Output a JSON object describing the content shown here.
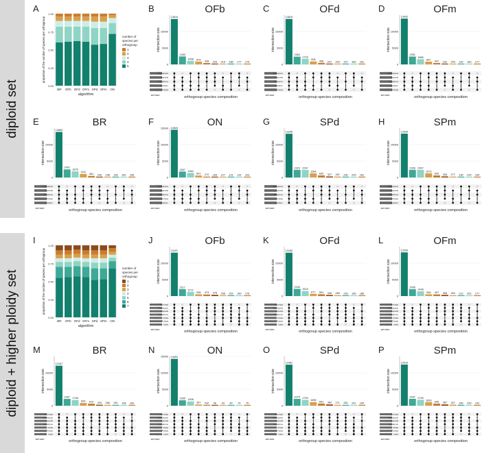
{
  "rows": {
    "diploid": "diploid set",
    "higher": "diploid + higher ploidy set"
  },
  "colors": {
    "dark": "#12806d",
    "mid": "#3fa896",
    "light": "#8fd4c4",
    "pale": "#cdeee8",
    "orange": "#c97d2c",
    "brown": "#8b4a1c",
    "gold": "#d9a04c"
  },
  "chart_data": [
    {
      "panel": "A",
      "type": "bar",
      "stacked": true,
      "title": "",
      "xlabel": "algorithm",
      "ylabel": "proportion of the number of species per orthogroup",
      "legend_title": "number of species per orthogroup",
      "categories": [
        "BR",
        "OFb",
        "OFd",
        "OFm",
        "SPd",
        "SPm",
        "ON"
      ],
      "ylim": [
        0,
        1
      ],
      "yticks": [
        "0.00",
        "0.25",
        "0.50",
        "0.75",
        "1.00"
      ],
      "series": [
        {
          "name": "5",
          "values": [
            0.6,
            0.61,
            0.62,
            0.61,
            0.57,
            0.58,
            0.72
          ]
        },
        {
          "name": "4",
          "values": [
            0.22,
            0.21,
            0.2,
            0.21,
            0.23,
            0.22,
            0.15
          ]
        },
        {
          "name": "3",
          "values": [
            0.08,
            0.08,
            0.08,
            0.08,
            0.09,
            0.09,
            0.07
          ]
        },
        {
          "name": "2",
          "values": [
            0.06,
            0.06,
            0.06,
            0.06,
            0.07,
            0.07,
            0.04
          ]
        },
        {
          "name": "1",
          "values": [
            0.04,
            0.04,
            0.04,
            0.04,
            0.04,
            0.04,
            0.02
          ]
        }
      ]
    },
    {
      "panel": "B",
      "type": "bar",
      "title": "OFb",
      "ylabel": "intersection size",
      "xlabel": "orthogroup species composition",
      "set_label": "set size",
      "ylim": [
        0,
        15000
      ],
      "yticks": [
        "0",
        "5000",
        "10000"
      ],
      "values": [
        13814,
        2430,
        1058,
        874,
        428,
        225,
        215,
        185,
        177,
        175
      ],
      "sets": [
        "Arabidopsis",
        "Capsella",
        "Cardamine",
        "Lepidium",
        "Rorippa"
      ]
    },
    {
      "panel": "C",
      "type": "bar",
      "title": "OFd",
      "ylabel": "intersection size",
      "xlabel": "orthogroup species composition",
      "set_label": "set size",
      "ylim": [
        0,
        15000
      ],
      "yticks": [
        "0",
        "5000",
        "10000"
      ],
      "values": [
        13819,
        2363,
        1716,
        908,
        458,
        247,
        202,
        197,
        182,
        181
      ],
      "sets": [
        "Arabidopsis",
        "Capsella",
        "Cardamine",
        "Lepidium",
        "Rorippa"
      ]
    },
    {
      "panel": "D",
      "type": "bar",
      "title": "OFm",
      "ylabel": "intersection size",
      "xlabel": "orthogroup species composition",
      "set_label": "set size",
      "ylim": [
        0,
        15000
      ],
      "yticks": [
        "0",
        "5000",
        "10000"
      ],
      "values": [
        13932,
        2391,
        1585,
        847,
        447,
        232,
        209,
        192,
        183,
        177
      ],
      "sets": [
        "Arabidopsis",
        "Capsella",
        "Cardamine",
        "Lepidium",
        "Rorippa"
      ]
    },
    {
      "panel": "E",
      "type": "bar",
      "title": "BR",
      "ylabel": "intersection size",
      "xlabel": "orthogroup species composition",
      "set_label": "set size",
      "ylim": [
        0,
        15000
      ],
      "yticks": [
        "0",
        "5000",
        "10000"
      ],
      "values": [
        13863,
        2457,
        1875,
        1111,
        481,
        243,
        238,
        199,
        160,
        156
      ],
      "sets": [
        "Arabidopsis",
        "Capsella",
        "Cardamine",
        "Rorippa",
        "Lepidium"
      ]
    },
    {
      "panel": "F",
      "type": "bar",
      "title": "ON",
      "ylabel": "intersection size",
      "xlabel": "orthogroup species composition",
      "set_label": "set size",
      "ylim": [
        0,
        15000
      ],
      "yticks": [
        "0",
        "5000",
        "10000",
        "15000"
      ],
      "values": [
        14524,
        1807,
        1382,
        601,
        272,
        169,
        127,
        121,
        115,
        103
      ],
      "sets": [
        "Arabidopsis",
        "Capsella",
        "Cardamine",
        "Rorippa",
        "Lepidium"
      ]
    },
    {
      "panel": "G",
      "type": "bar",
      "title": "SPd",
      "ylabel": "intersection size",
      "xlabel": "orthogroup species composition",
      "set_label": "set size",
      "ylim": [
        0,
        15000
      ],
      "yticks": [
        "0",
        "5000",
        "10000"
      ],
      "values": [
        13296,
        2315,
        2297,
        1284,
        632,
        327,
        287,
        230,
        225,
        162
      ],
      "sets": [
        "Arabidopsis",
        "Capsella",
        "Cardamine",
        "Rorippa",
        "Lepidium"
      ]
    },
    {
      "panel": "H",
      "type": "bar",
      "title": "SPm",
      "ylabel": "intersection size",
      "xlabel": "orthogroup species composition",
      "set_label": "set size",
      "ylim": [
        0,
        15000
      ],
      "yticks": [
        "0",
        "5000",
        "10000"
      ],
      "values": [
        13334,
        2326,
        2307,
        1273,
        625,
        335,
        277,
        230,
        229,
        159
      ],
      "sets": [
        "Arabidopsis",
        "Capsella",
        "Cardamine",
        "Rorippa",
        "Lepidium"
      ]
    },
    {
      "panel": "I",
      "type": "bar",
      "stacked": true,
      "title": "",
      "xlabel": "algorithm",
      "ylabel": "proportion of the number of species per orthogroup",
      "legend_title": "number of species per orthogroup",
      "categories": [
        "BR",
        "OFb",
        "OFd",
        "OFm",
        "SPd",
        "SPm",
        "ON"
      ],
      "ylim": [
        0,
        1
      ],
      "yticks": [
        "0.00",
        "0.25",
        "0.50",
        "0.75",
        "1.00"
      ],
      "series": [
        {
          "name": "7",
          "values": [
            0.55,
            0.56,
            0.57,
            0.56,
            0.52,
            0.53,
            0.68
          ]
        },
        {
          "name": "6",
          "values": [
            0.15,
            0.14,
            0.14,
            0.14,
            0.16,
            0.15,
            0.1
          ]
        },
        {
          "name": "5",
          "values": [
            0.07,
            0.07,
            0.07,
            0.07,
            0.08,
            0.08,
            0.05
          ]
        },
        {
          "name": "4",
          "values": [
            0.05,
            0.05,
            0.05,
            0.05,
            0.06,
            0.06,
            0.04
          ]
        },
        {
          "name": "3",
          "values": [
            0.05,
            0.05,
            0.05,
            0.05,
            0.05,
            0.05,
            0.04
          ]
        },
        {
          "name": "2",
          "values": [
            0.06,
            0.06,
            0.06,
            0.06,
            0.06,
            0.06,
            0.05
          ]
        },
        {
          "name": "1",
          "values": [
            0.07,
            0.07,
            0.06,
            0.07,
            0.07,
            0.07,
            0.04
          ]
        }
      ]
    },
    {
      "panel": "J",
      "type": "bar",
      "title": "OFb",
      "ylabel": "intersection size",
      "xlabel": "orthogroup species composition",
      "set_label": "set size",
      "ylim": [
        0,
        15000
      ],
      "yticks": [
        "0",
        "5000",
        "10000"
      ],
      "values": [
        13197,
        2117,
        1272,
        536,
        473,
        378,
        258,
        202,
        190,
        176
      ],
      "sets": [
        "Conringia",
        "Arabidopsis",
        "Capsella",
        "Cardamine",
        "Draba",
        "Rorippa",
        "Isatis"
      ]
    },
    {
      "panel": "K",
      "type": "bar",
      "title": "OFd",
      "ylabel": "intersection size",
      "xlabel": "orthogroup species composition",
      "set_label": "set size",
      "ylim": [
        0,
        15000
      ],
      "yticks": [
        "0",
        "5000",
        "10000"
      ],
      "values": [
        13180,
        2184,
        1524,
        677,
        551,
        346,
        280,
        233,
        196,
        186
      ],
      "sets": [
        "Conringia",
        "Arabidopsis",
        "Capsella",
        "Cardamine",
        "Draba",
        "Rorippa",
        "Isatis"
      ]
    },
    {
      "panel": "L",
      "type": "bar",
      "title": "OFm",
      "ylabel": "intersection size",
      "xlabel": "orthogroup species composition",
      "set_label": "set size",
      "ylim": [
        0,
        15000
      ],
      "yticks": [
        "0",
        "5000",
        "10000"
      ],
      "values": [
        13290,
        2095,
        1438,
        546,
        497,
        358,
        264,
        212,
        202,
        177
      ],
      "sets": [
        "Conringia",
        "Arabidopsis",
        "Capsella",
        "Cardamine",
        "Draba",
        "Rorippa",
        "Isatis"
      ]
    },
    {
      "panel": "M",
      "type": "bar",
      "title": "BR",
      "ylabel": "intersection size",
      "xlabel": "orthogroup species composition",
      "set_label": "set size",
      "ylim": [
        0,
        15000
      ],
      "yticks": [
        "0",
        "5000",
        "10000"
      ],
      "values": [
        12167,
        2067,
        1748,
        826,
        610,
        293,
        266,
        261,
        198,
        184
      ],
      "sets": [
        "Conringia",
        "Arabidopsis",
        "Capsella",
        "Cardamine",
        "Draba",
        "Rorippa",
        "Isatis"
      ]
    },
    {
      "panel": "N",
      "type": "bar",
      "title": "ON",
      "ylabel": "intersection size",
      "xlabel": "orthogroup species composition",
      "set_label": "set size",
      "ylim": [
        0,
        15000
      ],
      "yticks": [
        "0",
        "5000",
        "10000",
        "15000"
      ],
      "values": [
        14251,
        1655,
        1308,
        367,
        232,
        96,
        93,
        90,
        79,
        76
      ],
      "sets": [
        "Conringia",
        "Arabidopsis",
        "Capsella",
        "Cardamine",
        "Draba",
        "Rorippa",
        "Isatis"
      ]
    },
    {
      "panel": "O",
      "type": "bar",
      "title": "SPd",
      "ylabel": "intersection size",
      "xlabel": "orthogroup species composition",
      "set_label": "set size",
      "ylim": [
        0,
        15000
      ],
      "yticks": [
        "0",
        "5000",
        "10000"
      ],
      "values": [
        12481,
        2075,
        1790,
        1098,
        651,
        382,
        271,
        262,
        241,
        199
      ],
      "sets": [
        "Conringia",
        "Arabidopsis",
        "Capsella",
        "Cardamine",
        "Draba",
        "Rorippa",
        "Isatis"
      ]
    },
    {
      "panel": "P",
      "type": "bar",
      "title": "SPm",
      "ylabel": "intersection size",
      "xlabel": "orthogroup species composition",
      "set_label": "set size",
      "ylim": [
        0,
        15000
      ],
      "yticks": [
        "0",
        "5000",
        "10000"
      ],
      "values": [
        12510,
        2097,
        1799,
        1093,
        646,
        387,
        327,
        260,
        226,
        192
      ],
      "sets": [
        "Conringia",
        "Arabidopsis",
        "Capsella",
        "Cardamine",
        "Draba",
        "Rorippa",
        "Isatis"
      ]
    }
  ]
}
